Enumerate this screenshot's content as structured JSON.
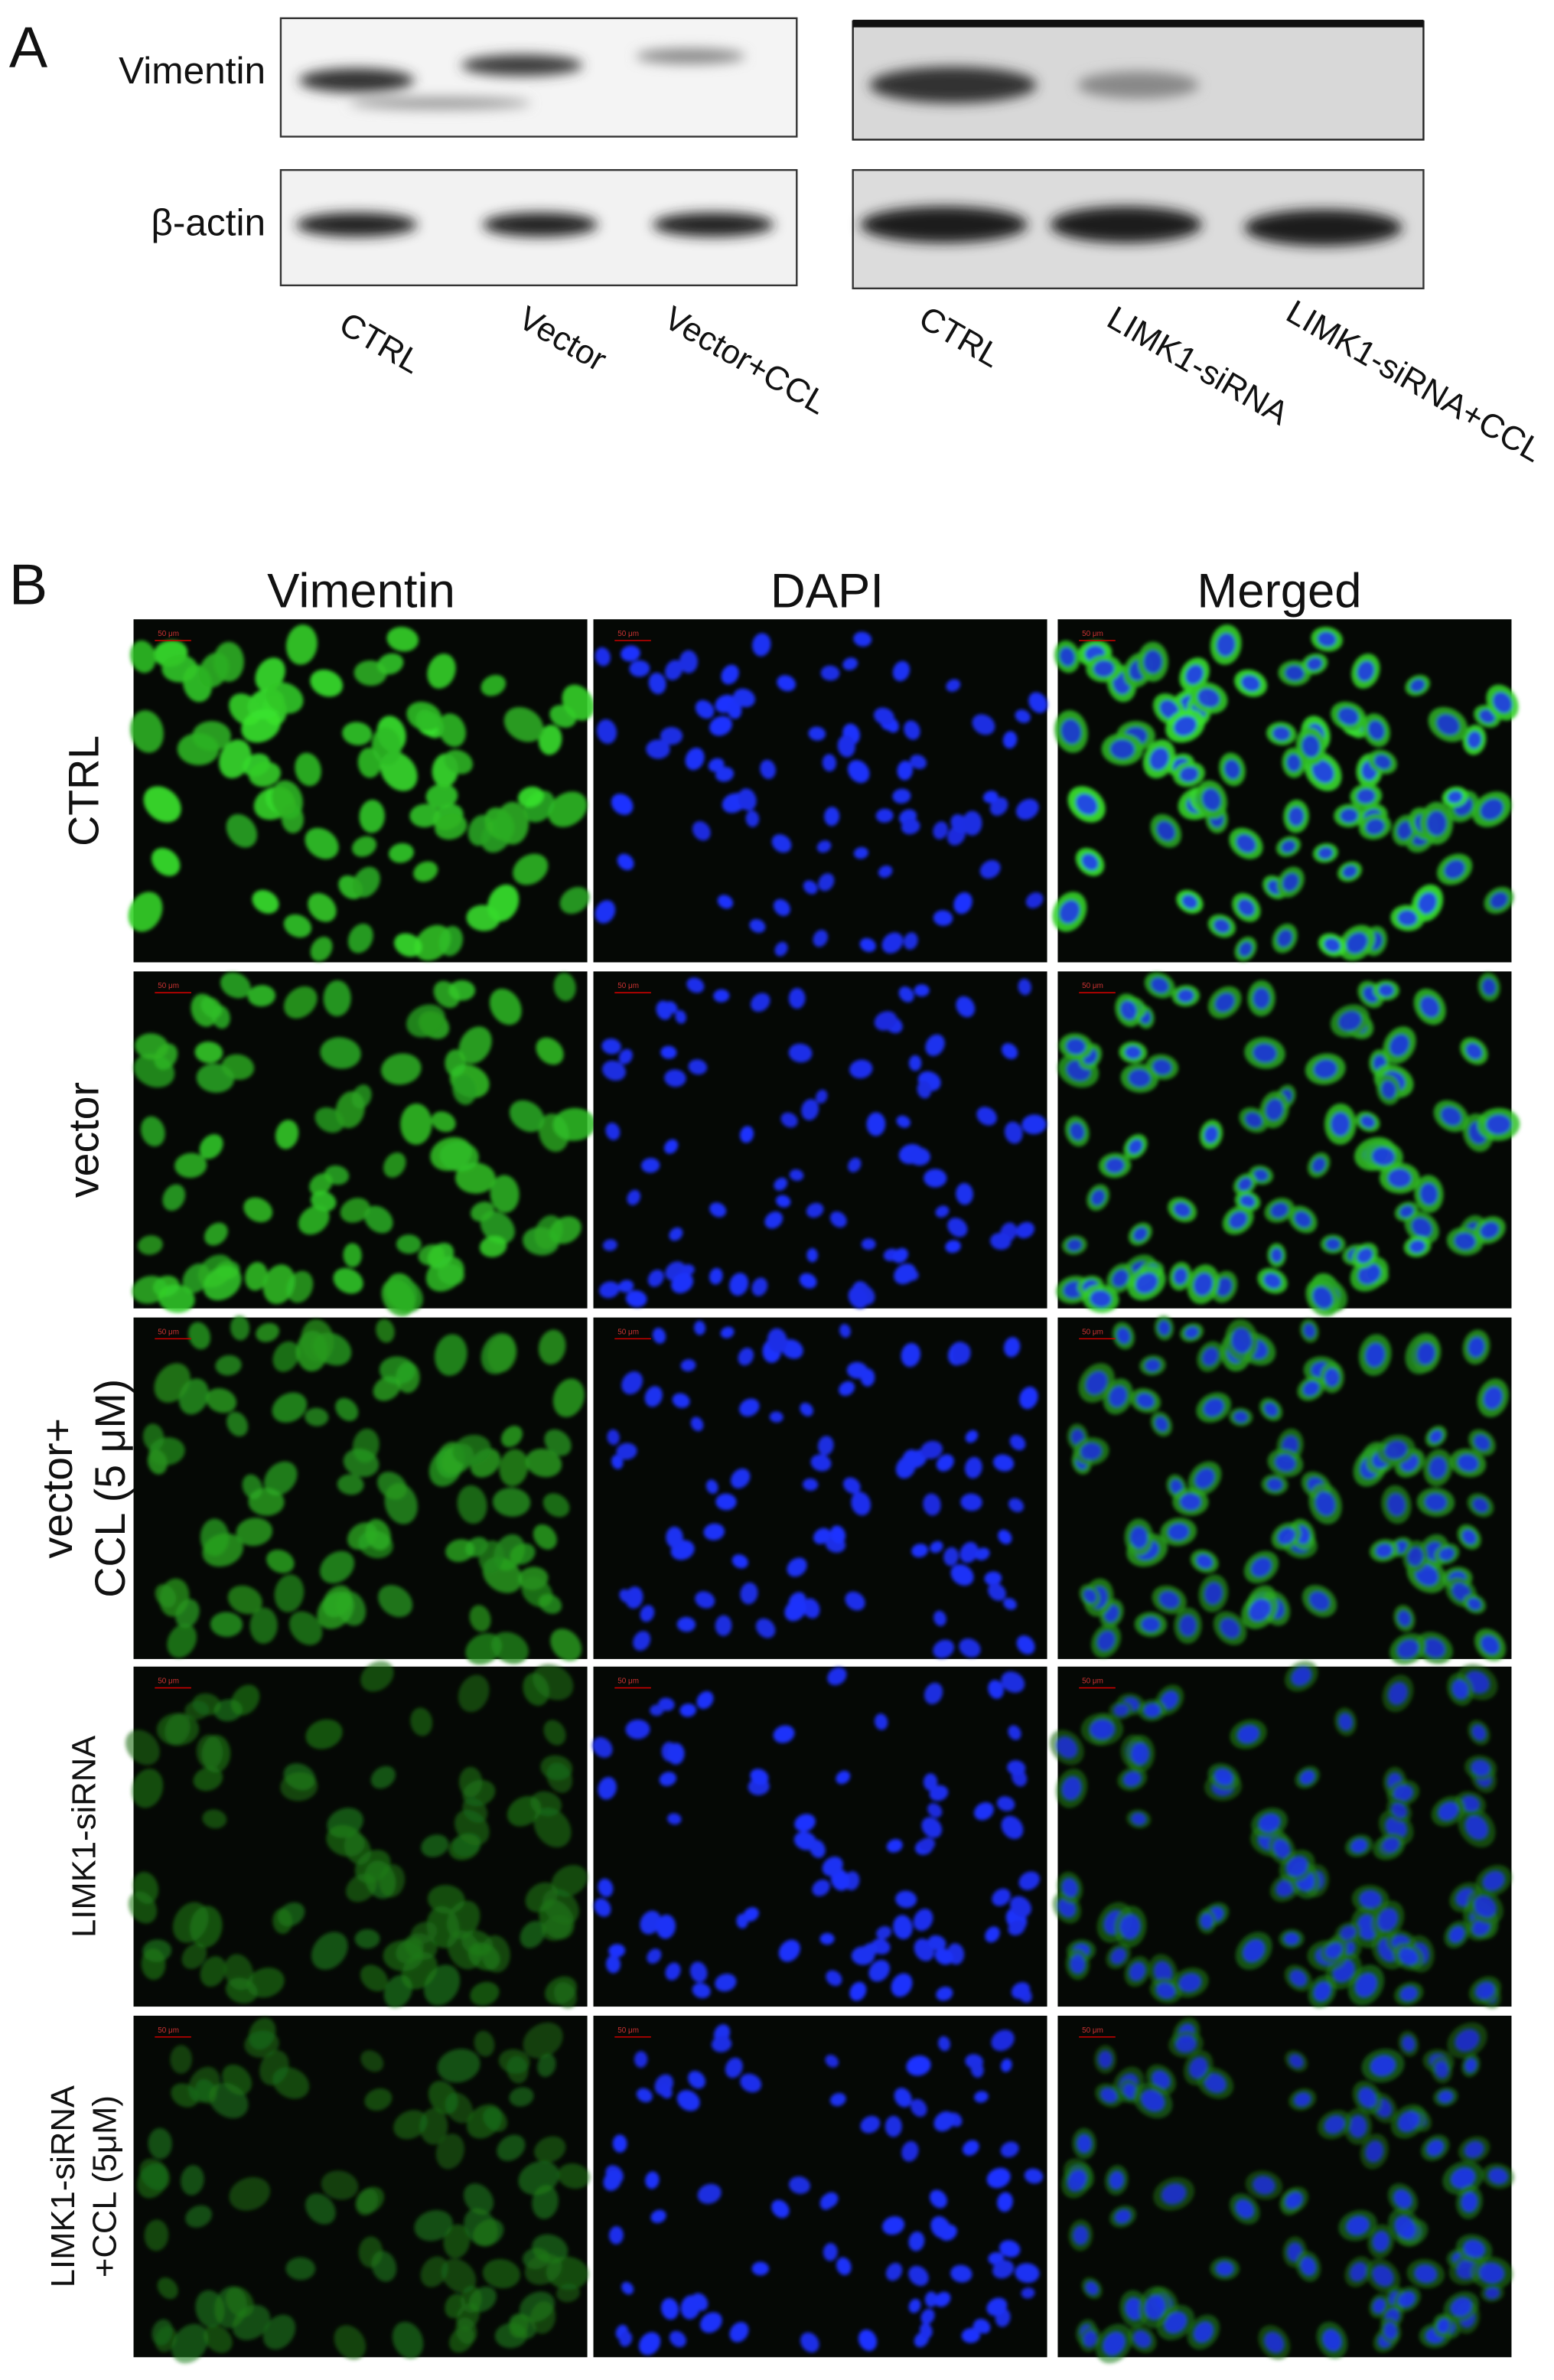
{
  "panel_a": {
    "label": "A",
    "blot_rows": [
      "Vimentin",
      "β-actin"
    ],
    "left_lanes": [
      "CTRL",
      "Vector",
      "Vector+CCL"
    ],
    "right_lanes": [
      "CTRL",
      "LIMK1-siRNA",
      "LIMK1-siRNA+CCL"
    ]
  },
  "panel_b": {
    "label": "B",
    "columns": [
      "Vimentin",
      "DAPI",
      "Merged"
    ],
    "rows": [
      [
        "CTRL"
      ],
      [
        "vector"
      ],
      [
        "vector+",
        "CCL (5 μM)"
      ],
      [
        "LIMK1-siRNA"
      ],
      [
        "LIMK1-siRNA",
        "+CCL (5μM)"
      ]
    ],
    "scale_bar": "50 μm"
  }
}
